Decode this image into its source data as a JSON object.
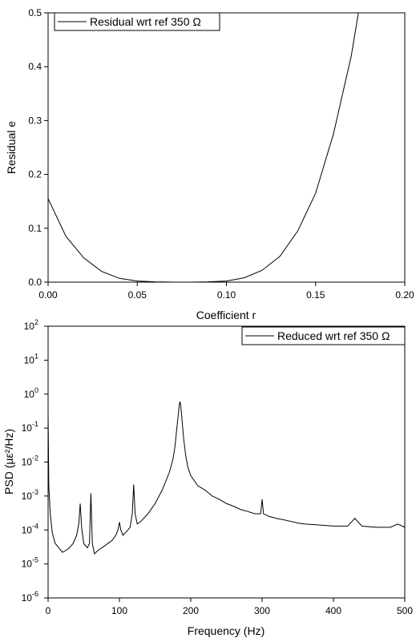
{
  "chart_data": [
    {
      "type": "line",
      "xlabel": "Coefficient r",
      "ylabel": "Residual e",
      "xlim": [
        0.0,
        0.2
      ],
      "ylim": [
        0.0,
        0.5
      ],
      "xticks": [
        "0.00",
        "0.05",
        "0.10",
        "0.15",
        "0.20"
      ],
      "yticks": [
        "0.0",
        "0.1",
        "0.2",
        "0.3",
        "0.4",
        "0.5"
      ],
      "legend_position": "top-left",
      "grid": false,
      "series": [
        {
          "name": "Residual wrt ref 350 Ω",
          "x": [
            0.0,
            0.01,
            0.02,
            0.03,
            0.04,
            0.05,
            0.06,
            0.07,
            0.08,
            0.09,
            0.1,
            0.11,
            0.12,
            0.13,
            0.14,
            0.15,
            0.16,
            0.17,
            0.174
          ],
          "y": [
            0.155,
            0.085,
            0.045,
            0.02,
            0.007,
            0.002,
            0.0005,
            0.0,
            0.0,
            0.0005,
            0.002,
            0.008,
            0.022,
            0.048,
            0.095,
            0.165,
            0.275,
            0.42,
            0.5
          ]
        }
      ]
    },
    {
      "type": "line",
      "xlabel": "Frequency (Hz)",
      "ylabel": "PSD (µε²/Hz)",
      "xlim": [
        0,
        500
      ],
      "ylim": [
        1e-06,
        100
      ],
      "yscale": "log",
      "xticks": [
        "0",
        "100",
        "200",
        "300",
        "400",
        "500"
      ],
      "ytick_exponents": [
        "-6",
        "-5",
        "-4",
        "-3",
        "-2",
        "-1",
        "0",
        "1",
        "2"
      ],
      "ytick_base": "10",
      "legend_position": "top-right",
      "grid": false,
      "series": [
        {
          "name": "Reduced wrt ref 350 Ω",
          "x": [
            0,
            1,
            3,
            6,
            10,
            15,
            20,
            25,
            30,
            35,
            40,
            43,
            45,
            47,
            50,
            55,
            58,
            60,
            62,
            65,
            70,
            80,
            90,
            95,
            98,
            100,
            102,
            105,
            110,
            115,
            118,
            120,
            122,
            125,
            130,
            140,
            150,
            160,
            170,
            175,
            178,
            180,
            182,
            184,
            185,
            186,
            188,
            190,
            193,
            196,
            200,
            210,
            220,
            230,
            240,
            250,
            260,
            270,
            280,
            290,
            298,
            300,
            302,
            310,
            320,
            330,
            340,
            350,
            360,
            380,
            400,
            420,
            430,
            440,
            460,
            480,
            490,
            500
          ],
          "y": [
            0.3,
            0.002,
            0.0003,
            8e-05,
            4e-05,
            3e-05,
            2.2e-05,
            2.5e-05,
            3e-05,
            4e-05,
            7e-05,
            0.00015,
            0.0006,
            0.00012,
            4e-05,
            3e-05,
            4e-05,
            0.0012,
            4e-05,
            2e-05,
            2.5e-05,
            3.5e-05,
            5e-05,
            7e-05,
            0.0001,
            0.00017,
            0.0001,
            7e-05,
            9e-05,
            0.00012,
            0.0003,
            0.0022,
            0.0003,
            0.00015,
            0.00018,
            0.0003,
            0.0006,
            0.0015,
            0.005,
            0.012,
            0.03,
            0.08,
            0.2,
            0.5,
            0.6,
            0.45,
            0.15,
            0.05,
            0.015,
            0.007,
            0.004,
            0.002,
            0.0015,
            0.001,
            0.0008,
            0.0006,
            0.0005,
            0.0004,
            0.00035,
            0.0003,
            0.0003,
            0.0008,
            0.0003,
            0.00025,
            0.00022,
            0.0002,
            0.00018,
            0.00016,
            0.00015,
            0.00014,
            0.00013,
            0.00013,
            0.00022,
            0.00013,
            0.00012,
            0.00012,
            0.00015,
            0.00012
          ]
        }
      ]
    }
  ]
}
